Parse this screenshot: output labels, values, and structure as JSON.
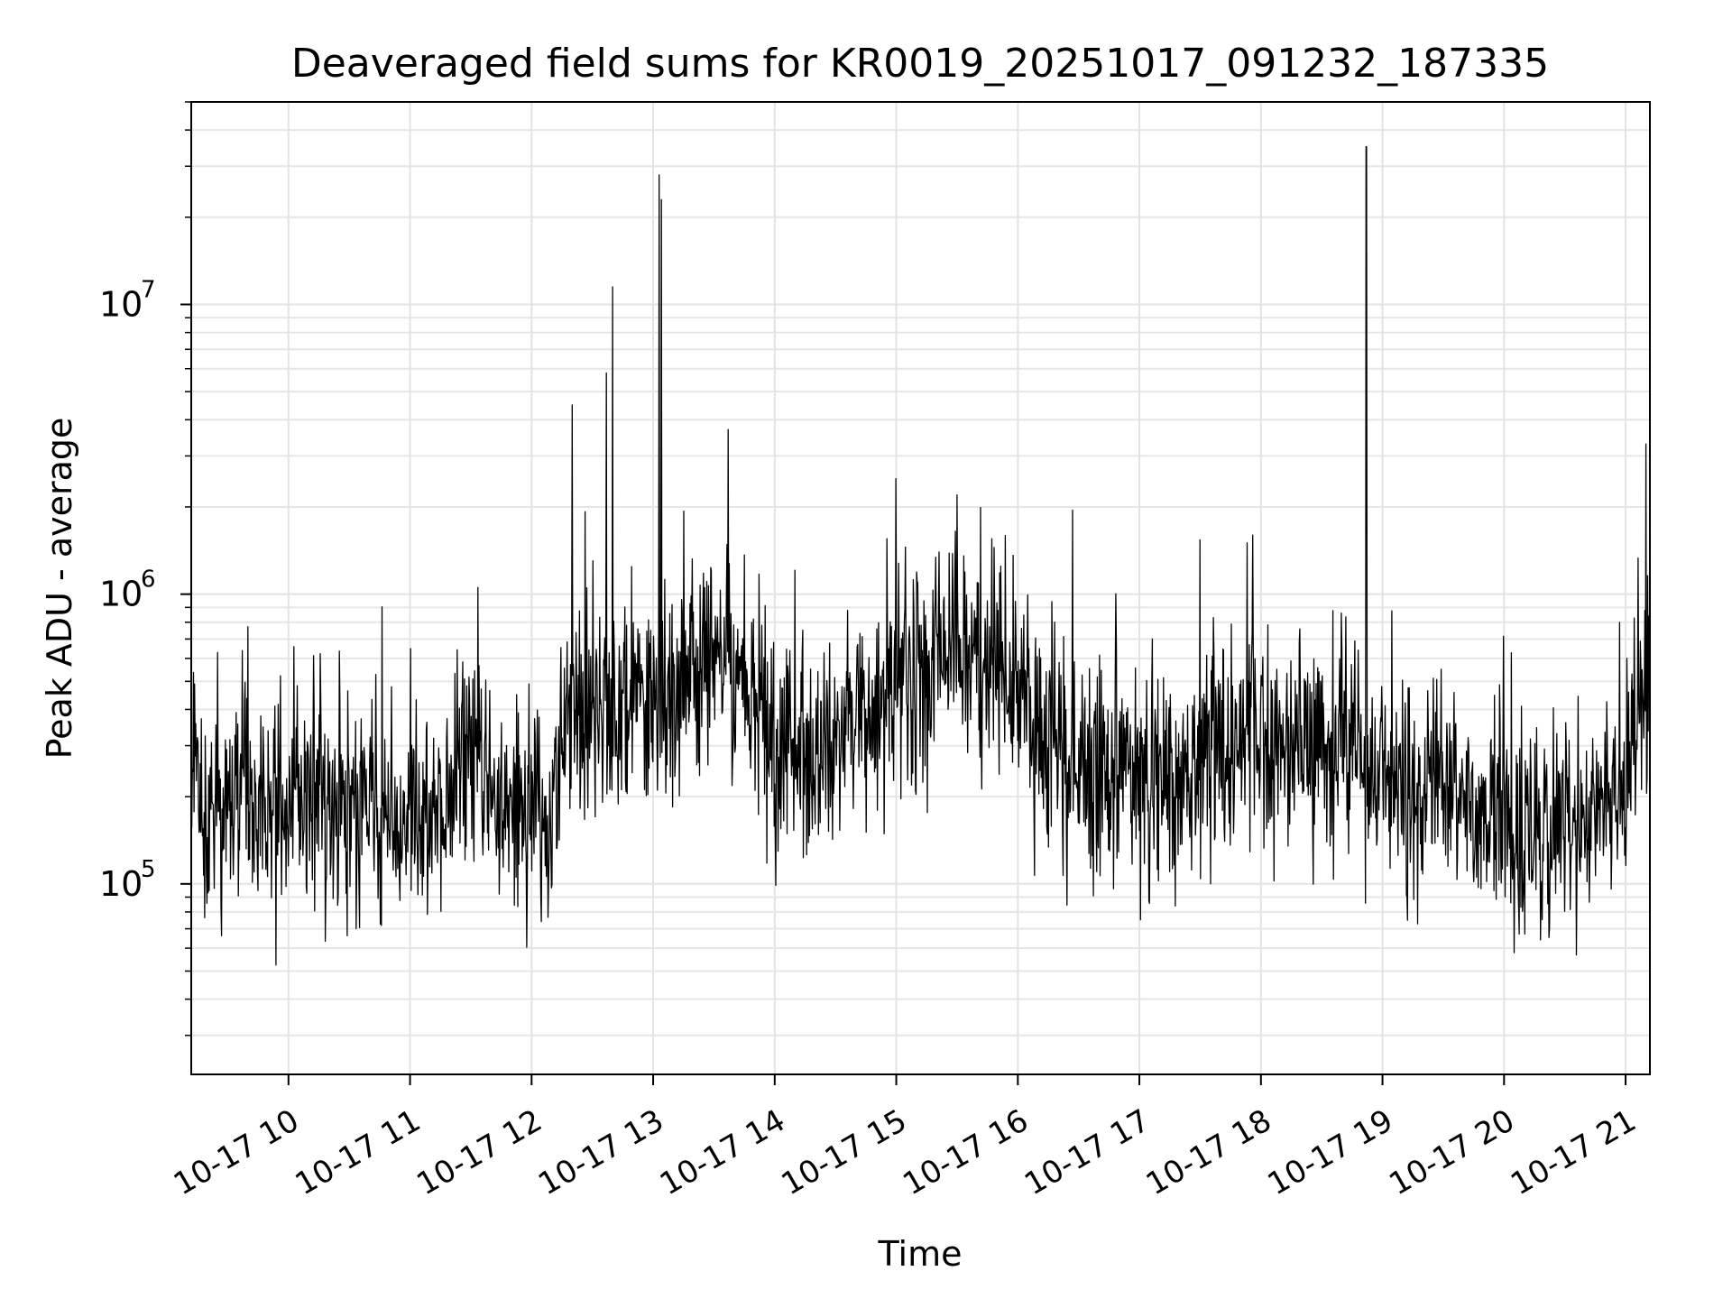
{
  "chart_data": {
    "type": "line",
    "title": "Deaveraged field sums for KR0019_20251017_091232_187335",
    "xlabel": "Time",
    "ylabel": "Peak ADU - average",
    "xlim": [
      "2025-10-17 09:12",
      "2025-10-17 21:12"
    ],
    "ylim": [
      22000,
      50000000
    ],
    "yscale": "log",
    "grid": true,
    "line_color": "#000000",
    "x_ticks": [
      {
        "value": "2025-10-17 10:00",
        "label": "10-17 10"
      },
      {
        "value": "2025-10-17 11:00",
        "label": "10-17 11"
      },
      {
        "value": "2025-10-17 12:00",
        "label": "10-17 12"
      },
      {
        "value": "2025-10-17 13:00",
        "label": "10-17 13"
      },
      {
        "value": "2025-10-17 14:00",
        "label": "10-17 14"
      },
      {
        "value": "2025-10-17 15:00",
        "label": "10-17 15"
      },
      {
        "value": "2025-10-17 16:00",
        "label": "10-17 16"
      },
      {
        "value": "2025-10-17 17:00",
        "label": "10-17 17"
      },
      {
        "value": "2025-10-17 18:00",
        "label": "10-17 18"
      },
      {
        "value": "2025-10-17 19:00",
        "label": "10-17 19"
      },
      {
        "value": "2025-10-17 20:00",
        "label": "10-17 20"
      },
      {
        "value": "2025-10-17 21:00",
        "label": "10-17 21"
      }
    ],
    "y_ticks": [
      {
        "value": 100000,
        "label": "10",
        "exp": "5"
      },
      {
        "value": 1000000,
        "label": "10",
        "exp": "6"
      },
      {
        "value": 10000000,
        "label": "10",
        "exp": "7"
      }
    ],
    "series": [
      {
        "x": [
          "2025-10-17 09:12",
          "2025-10-17 09:20",
          "2025-10-17 09:30",
          "2025-10-17 09:40",
          "2025-10-17 09:50",
          "2025-10-17 10:00",
          "2025-10-17 10:10",
          "2025-10-17 10:20",
          "2025-10-17 10:30",
          "2025-10-17 10:40",
          "2025-10-17 10:50",
          "2025-10-17 11:00",
          "2025-10-17 11:10",
          "2025-10-17 11:20",
          "2025-10-17 11:30",
          "2025-10-17 11:40",
          "2025-10-17 11:50",
          "2025-10-17 12:00",
          "2025-10-17 12:10",
          "2025-10-17 12:20",
          "2025-10-17 12:30",
          "2025-10-17 12:40",
          "2025-10-17 12:50",
          "2025-10-17 13:00",
          "2025-10-17 13:10",
          "2025-10-17 13:20",
          "2025-10-17 13:30",
          "2025-10-17 13:40",
          "2025-10-17 13:50",
          "2025-10-17 14:00",
          "2025-10-17 14:10",
          "2025-10-17 14:20",
          "2025-10-17 14:30",
          "2025-10-17 14:40",
          "2025-10-17 14:50",
          "2025-10-17 15:00",
          "2025-10-17 15:10",
          "2025-10-17 15:20",
          "2025-10-17 15:30",
          "2025-10-17 15:40",
          "2025-10-17 15:50",
          "2025-10-17 16:00",
          "2025-10-17 16:10",
          "2025-10-17 16:20",
          "2025-10-17 16:30",
          "2025-10-17 16:40",
          "2025-10-17 16:50",
          "2025-10-17 17:00",
          "2025-10-17 17:10",
          "2025-10-17 17:20",
          "2025-10-17 17:30",
          "2025-10-17 17:40",
          "2025-10-17 17:50",
          "2025-10-17 18:00",
          "2025-10-17 18:10",
          "2025-10-17 18:20",
          "2025-10-17 18:30",
          "2025-10-17 18:40",
          "2025-10-17 18:50",
          "2025-10-17 19:00",
          "2025-10-17 19:10",
          "2025-10-17 19:20",
          "2025-10-17 19:30",
          "2025-10-17 19:40",
          "2025-10-17 19:50",
          "2025-10-17 20:00",
          "2025-10-17 20:10",
          "2025-10-17 20:20",
          "2025-10-17 20:30",
          "2025-10-17 20:40",
          "2025-10-17 20:50",
          "2025-10-17 21:00",
          "2025-10-17 21:10"
        ],
        "y": [
          250000,
          180000,
          200000,
          170000,
          190000,
          200000,
          210000,
          190000,
          170000,
          200000,
          160000,
          180000,
          150000,
          200000,
          300000,
          200000,
          180000,
          160000,
          170000,
          450000,
          380000,
          420000,
          450000,
          480000,
          430000,
          550000,
          600000,
          500000,
          450000,
          320000,
          250000,
          270000,
          300000,
          320000,
          340000,
          500000,
          480000,
          550000,
          700000,
          600000,
          500000,
          450000,
          350000,
          280000,
          270000,
          250000,
          240000,
          230000,
          240000,
          250000,
          270000,
          300000,
          320000,
          310000,
          300000,
          280000,
          280000,
          290000,
          260000,
          240000,
          210000,
          200000,
          190000,
          180000,
          180000,
          170000,
          150000,
          140000,
          150000,
          160000,
          180000,
          220000,
          500000
        ]
      }
    ],
    "spikes": [
      {
        "x": "2025-10-17 12:20",
        "y": 4500000
      },
      {
        "x": "2025-10-17 12:37",
        "y": 5800000
      },
      {
        "x": "2025-10-17 12:40",
        "y": 11500000
      },
      {
        "x": "2025-10-17 13:03",
        "y": 28000000
      },
      {
        "x": "2025-10-17 13:04",
        "y": 23000000
      },
      {
        "x": "2025-10-17 13:37",
        "y": 3700000
      },
      {
        "x": "2025-10-17 15:30",
        "y": 2200000
      },
      {
        "x": "2025-10-17 16:27",
        "y": 1950000
      },
      {
        "x": "2025-10-17 17:56",
        "y": 1600000
      },
      {
        "x": "2025-10-17 18:52",
        "y": 35000000
      },
      {
        "x": "2025-10-17 21:10",
        "y": 3300000
      }
    ]
  }
}
